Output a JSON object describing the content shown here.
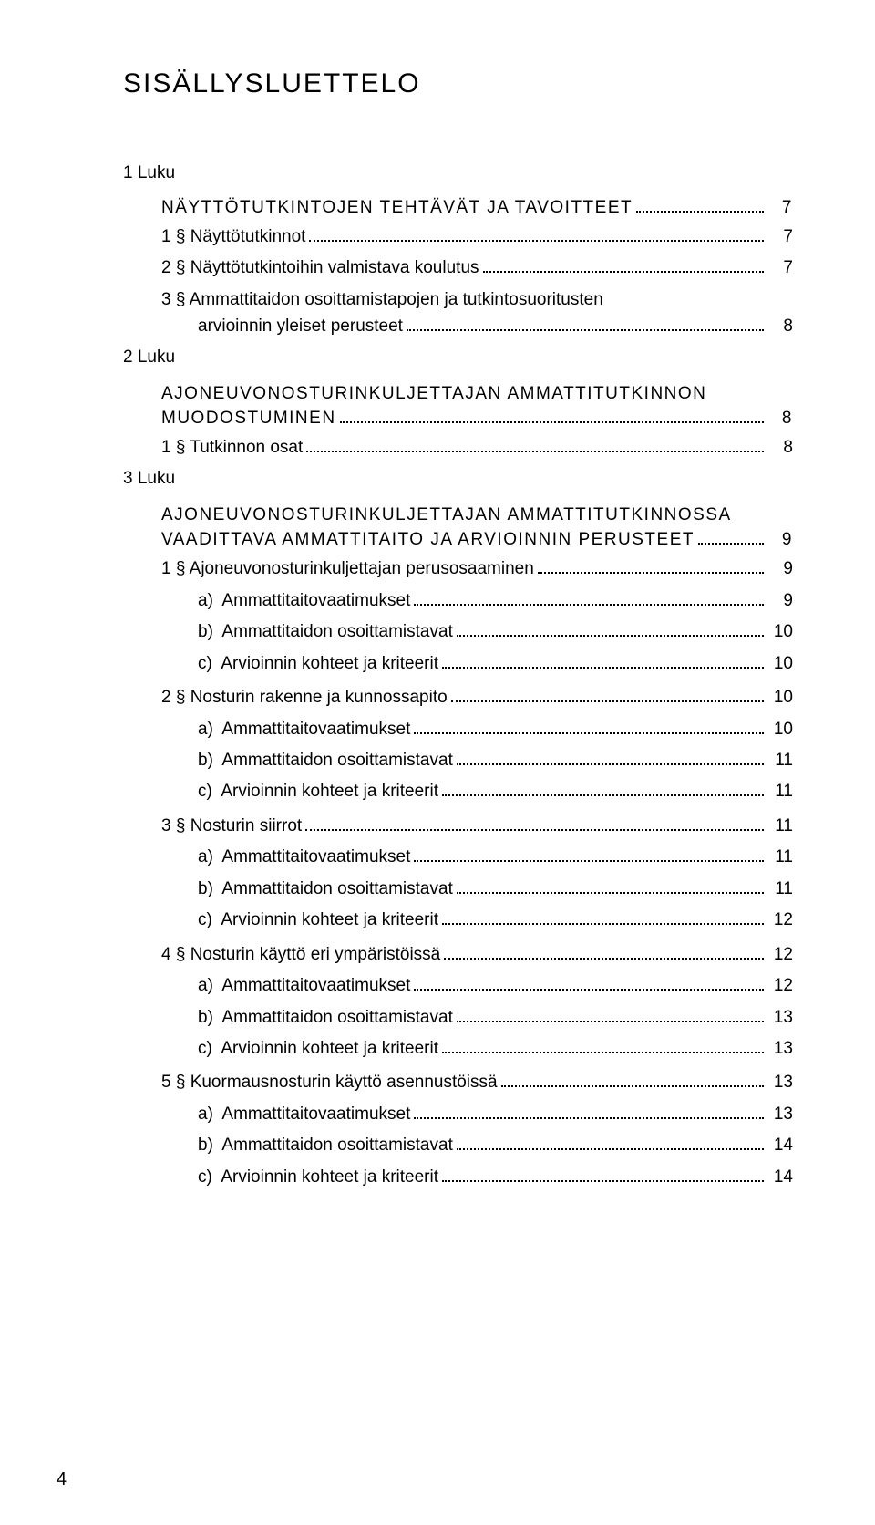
{
  "title": "SISÄLLYSLUETTELO",
  "page_number": "4",
  "colors": {
    "background": "#ffffff",
    "text": "#000000"
  },
  "typography": {
    "body_font": "Helvetica Neue, Arial, sans-serif",
    "title_fontsize": 30,
    "body_fontsize": 19
  },
  "luku1": {
    "label": "1 Luku",
    "title": "NÄYTTÖTUTKINTOJEN TEHTÄVÄT JA TAVOITTEET",
    "title_page": "7",
    "e1": {
      "label": "1 § Näyttötutkinnot",
      "page": "7"
    },
    "e2": {
      "label": "2 § Näyttötutkintoihin valmistava koulutus",
      "page": "7"
    },
    "e3a": "3 § Ammattitaidon osoittamistapojen ja tutkintosuoritusten",
    "e3b": {
      "label": "arvioinnin yleiset perusteet",
      "page": "8"
    }
  },
  "luku2": {
    "label": "2 Luku",
    "title_a": "AJONEUVONOSTURINKULJETTAJAN AMMATTITUTKINNON",
    "title_b": "MUODOSTUMINEN",
    "title_page": "8",
    "e1": {
      "label": "1 § Tutkinnon osat",
      "page": "8"
    }
  },
  "luku3": {
    "label": "3 Luku",
    "title_a": "AJONEUVONOSTURINKULJETTAJAN AMMATTITUTKINNOSSA",
    "title_b": "VAADITTAVA AMMATTITAITO JA ARVIOINNIN PERUSTEET",
    "title_page": "9",
    "s1": {
      "label": "1 § Ajoneuvonosturinkuljettajan perusosaaminen",
      "page": "9",
      "a": {
        "label": "a)  Ammattitaitovaatimukset",
        "page": "9"
      },
      "b": {
        "label": "b)  Ammattitaidon osoittamistavat",
        "page": "10"
      },
      "c": {
        "label": "c)  Arvioinnin kohteet ja kriteerit",
        "page": "10"
      }
    },
    "s2": {
      "label": "2 § Nosturin rakenne ja kunnossapito",
      "page": "10",
      "a": {
        "label": "a)  Ammattitaitovaatimukset",
        "page": "10"
      },
      "b": {
        "label": "b)  Ammattitaidon osoittamistavat",
        "page": "11"
      },
      "c": {
        "label": "c)  Arvioinnin kohteet ja kriteerit",
        "page": "11"
      }
    },
    "s3": {
      "label": "3 § Nosturin siirrot",
      "page": "11",
      "a": {
        "label": "a)  Ammattitaitovaatimukset",
        "page": "11"
      },
      "b": {
        "label": "b)  Ammattitaidon osoittamistavat",
        "page": "11"
      },
      "c": {
        "label": "c)  Arvioinnin kohteet ja kriteerit",
        "page": "12"
      }
    },
    "s4": {
      "label": "4 § Nosturin käyttö eri ympäristöissä",
      "page": "12",
      "a": {
        "label": "a)  Ammattitaitovaatimukset",
        "page": "12"
      },
      "b": {
        "label": "b)  Ammattitaidon osoittamistavat",
        "page": "13"
      },
      "c": {
        "label": "c)  Arvioinnin kohteet ja kriteerit",
        "page": "13"
      }
    },
    "s5": {
      "label": "5 § Kuormausnosturin käyttö asennustöissä",
      "page": "13",
      "a": {
        "label": "a)  Ammattitaitovaatimukset",
        "page": "13"
      },
      "b": {
        "label": "b)  Ammattitaidon osoittamistavat",
        "page": "14"
      },
      "c": {
        "label": "c)  Arvioinnin kohteet ja kriteerit",
        "page": "14"
      }
    }
  }
}
